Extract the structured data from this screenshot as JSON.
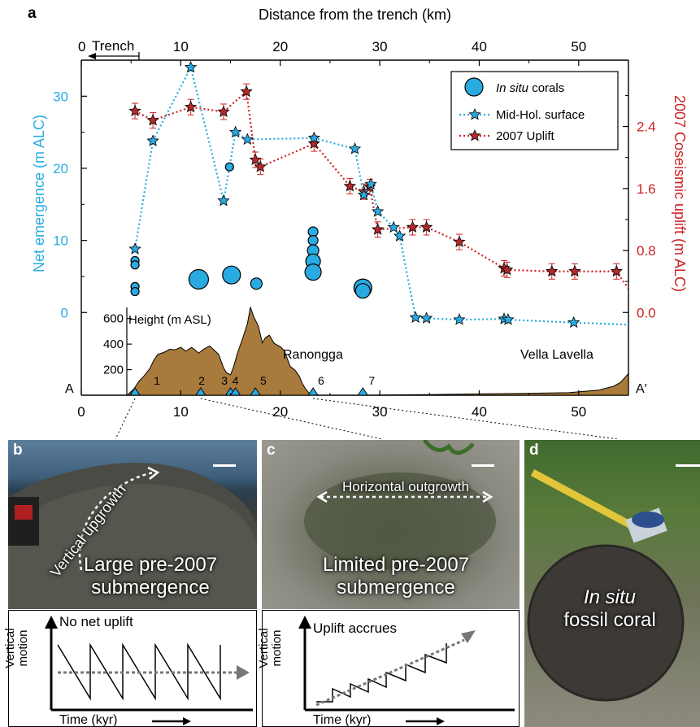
{
  "chart_data": {
    "type": "scatter",
    "panel_label": "a",
    "x_top_label": "Distance from the trench (km)",
    "x_ticks": [
      "0",
      "10",
      "20",
      "30",
      "40",
      "50"
    ],
    "trench_label": "Trench",
    "xlim": [
      0,
      55
    ],
    "left_axis": {
      "label": "Net emergence (m ALC)",
      "ticks": [
        "0",
        "10",
        "20",
        "30"
      ],
      "ylim": [
        -2,
        35
      ],
      "color": "#29abe2"
    },
    "right_axis": {
      "label": "2007 Coseismic uplift (m ALC)",
      "ticks": [
        "0.0",
        "0.8",
        "1.6",
        "2.4"
      ],
      "ylim": [
        -0.186,
        3.256
      ],
      "color": "#cc2222"
    },
    "legend": {
      "position": "top-right",
      "entries": [
        {
          "italic": "In situ",
          "text": " corals"
        },
        {
          "text": "Mid-Hol. surface"
        },
        {
          "text": "2007 Uplift"
        }
      ]
    },
    "series": [
      {
        "name": "In situ corals",
        "points": [
          {
            "x": 5.4,
            "y": 7.2,
            "size": 5
          },
          {
            "x": 5.4,
            "y": 6.6,
            "size": 5
          },
          {
            "x": 5.4,
            "y": 3.6,
            "size": 5
          },
          {
            "x": 5.4,
            "y": 2.9,
            "size": 5
          },
          {
            "x": 11.8,
            "y": 4.6,
            "size": 12
          },
          {
            "x": 15.1,
            "y": 5.2,
            "size": 11
          },
          {
            "x": 14.9,
            "y": 20.2,
            "size": 5
          },
          {
            "x": 17.6,
            "y": 4.0,
            "size": 7
          },
          {
            "x": 23.3,
            "y": 11.2,
            "size": 6
          },
          {
            "x": 23.3,
            "y": 10.0,
            "size": 6
          },
          {
            "x": 23.3,
            "y": 8.6,
            "size": 7
          },
          {
            "x": 23.3,
            "y": 7.1,
            "size": 9
          },
          {
            "x": 23.3,
            "y": 5.6,
            "size": 10
          },
          {
            "x": 28.3,
            "y": 3.4,
            "size": 11
          },
          {
            "x": 28.3,
            "y": 3.0,
            "size": 9
          }
        ]
      },
      {
        "name": "Mid-Hol. surface",
        "x": [
          5.4,
          7.2,
          11.0,
          14.3,
          15.5,
          16.7,
          23.4,
          27.5,
          28.4,
          29.1,
          29.8,
          31.4,
          32.0,
          33.6,
          34.7,
          38.0,
          42.5,
          42.9,
          49.5,
          55.0
        ],
        "y": [
          8.8,
          23.8,
          34.0,
          15.5,
          25.0,
          24.0,
          24.2,
          22.7,
          16.3,
          17.8,
          14.0,
          11.8,
          10.6,
          -0.7,
          -0.8,
          -1.0,
          -0.9,
          -1.0,
          -1.4,
          -1.7
        ]
      },
      {
        "name": "2007 Uplift",
        "x": [
          5.4,
          7.2,
          11.0,
          14.3,
          16.6,
          17.5,
          18.0,
          23.4,
          27.0,
          28.4,
          29.0,
          29.8,
          33.3,
          34.7,
          38.0,
          42.5,
          42.8,
          47.3,
          49.6,
          53.8,
          55.0
        ],
        "y": [
          2.6,
          2.48,
          2.65,
          2.59,
          2.85,
          1.97,
          1.88,
          2.18,
          1.63,
          1.56,
          1.62,
          1.07,
          1.1,
          1.1,
          0.91,
          0.57,
          0.55,
          0.53,
          0.53,
          0.53,
          0.31
        ],
        "err": 0.1
      }
    ],
    "topography": {
      "label": "Height (m ASL)",
      "ticks": [
        "200",
        "400",
        "600"
      ],
      "ylim": [
        0,
        700
      ],
      "x": [
        0,
        4.6,
        5.3,
        5.8,
        6.3,
        6.9,
        7.3,
        7.7,
        8.3,
        8.9,
        9.4,
        10.0,
        10.5,
        11.1,
        11.8,
        12.3,
        12.9,
        13.4,
        13.8,
        14.3,
        14.6,
        15.0,
        15.3,
        15.7,
        16.2,
        16.7,
        17.0,
        17.3,
        17.8,
        18.2,
        18.5,
        18.9,
        19.4,
        20.0,
        20.4,
        21.0,
        21.5,
        21.9,
        22.2,
        22.5,
        22.8,
        23.0,
        23.5,
        24.0,
        28.0,
        35.0,
        40.0,
        45.0,
        49.0,
        52.0,
        53.5,
        54.2,
        55.0
      ],
      "y": [
        0,
        0,
        50,
        110,
        150,
        210,
        275,
        320,
        335,
        360,
        355,
        375,
        345,
        375,
        330,
        360,
        385,
        350,
        320,
        215,
        175,
        160,
        220,
        330,
        440,
        560,
        690,
        620,
        540,
        410,
        450,
        470,
        405,
        380,
        350,
        225,
        195,
        150,
        95,
        55,
        25,
        10,
        5,
        0,
        0,
        5,
        10,
        15,
        20,
        40,
        70,
        100,
        170
      ],
      "sites": [
        "1",
        "2",
        "3",
        "4",
        "5",
        "6",
        "7"
      ],
      "profile_start": "A",
      "profile_end": "A′",
      "islands": [
        "Ranongga",
        "Vella Lavella"
      ]
    },
    "x_bottom_ticks": [
      "0",
      "10",
      "20",
      "30",
      "40",
      "50"
    ]
  },
  "photos": {
    "b": {
      "label": "b",
      "arrow_text": "Vertical upgrowth",
      "main_text": [
        "Large pre-2007",
        "submergence"
      ]
    },
    "c": {
      "label": "c",
      "arrow_text": "Horizontal outgrowth",
      "main_text": [
        "Limited pre-2007",
        "submergence"
      ]
    },
    "d": {
      "label": "d",
      "italic_text": "In situ",
      "main_text": "fossil coral"
    }
  },
  "diagrams": {
    "b": {
      "title": "No net uplift",
      "ylabel": [
        "Vertical",
        "motion"
      ],
      "xlabel": "Time (kyr)"
    },
    "c": {
      "title": "Uplift accrues",
      "ylabel": [
        "Vertical",
        "motion"
      ],
      "xlabel": "Time (kyr)"
    }
  },
  "colors": {
    "cyan": "#29abe2",
    "red": "#cc2222",
    "topo": "#a87a3c"
  }
}
